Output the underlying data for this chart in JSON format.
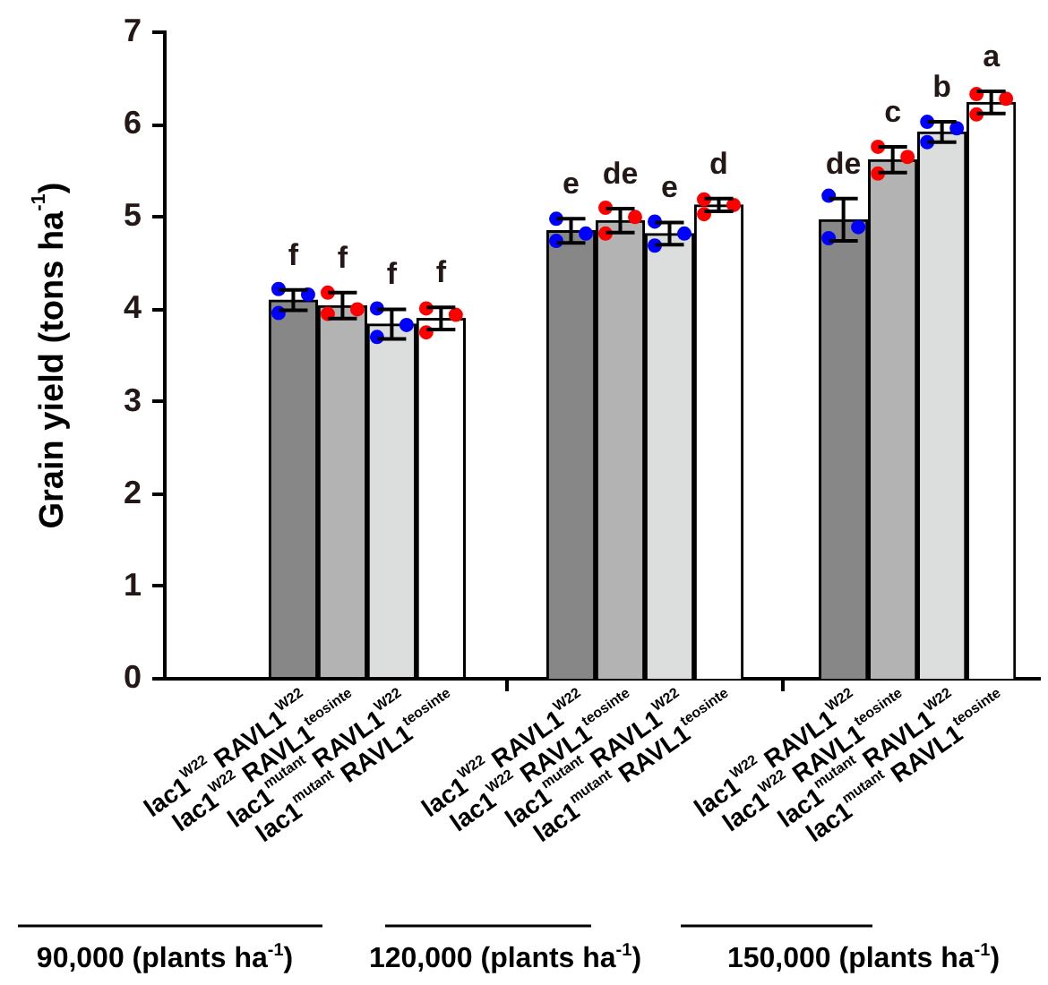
{
  "chart_data": [
    {
      "type": "bar",
      "categories": [
        "lac1$^{W22}$ RAVL1$^{W22}$",
        "lac1$^{W22}$ RAVL1$^{teosinte}$",
        "lac1$^{mutant}$ RAVL1$^{W22}$",
        "lac1$^{mutant}$ RAVL1$^{teosinte}$"
      ],
      "xlabel": "90,000 (plants ha$^{-1}$)",
      "ylabel": "Grain yield (tons ha$^{-1}$)",
      "ylim": [
        0,
        7
      ],
      "yticks": [
        0,
        1,
        2,
        3,
        4,
        5,
        6,
        7
      ],
      "marker": "circle",
      "series": [
        {
          "type": "bar",
          "values": [
            4.1,
            4.04,
            3.84,
            3.9
          ],
          "colors": [
            "#878787",
            "#b3b3b3",
            "#dcdddd",
            "#ffffff"
          ],
          "errors": [
            0.11,
            0.14,
            0.16,
            0.12
          ]
        },
        {
          "type": "scatter",
          "color": "#0000ff",
          "x": [
            "lac1$^{W22}$ RAVL1$^{W22}$",
            "lac1$^{W22}$ RAVL1$^{W22}$",
            "lac1$^{W22}$ RAVL1$^{W22}$",
            "lac1$^{mutant}$ RAVL1$^{W22}$",
            "lac1$^{mutant}$ RAVL1$^{W22}$",
            "lac1$^{mutant}$ RAVL1$^{W22}$"
          ],
          "values": [
            4.22,
            4.16,
            3.96,
            4.01,
            3.83,
            3.7
          ]
        },
        {
          "type": "scatter",
          "color": "#ff0000",
          "x": [
            "lac1$^{W22}$ RAVL1$^{teosinte}$",
            "lac1$^{W22}$ RAVL1$^{teosinte}$",
            "lac1$^{W22}$ RAVL1$^{teosinte}$",
            "lac1$^{mutant}$ RAVL1$^{teosinte}$",
            "lac1$^{mutant}$ RAVL1$^{teosinte}$",
            "lac1$^{mutant}$ RAVL1$^{teosinte}$"
          ],
          "values": [
            4.18,
            4.0,
            3.95,
            4.01,
            3.94,
            3.75
          ]
        }
      ],
      "annotations": [
        "f",
        "f",
        "f",
        "f"
      ]
    },
    {
      "type": "bar",
      "categories": [
        "lac1$^{W22}$ RAVL1$^{W22}$",
        "lac1$^{W22}$ RAVL1$^{teosinte}$",
        "lac1$^{mutant}$ RAVL1$^{W22}$",
        "lac1$^{mutant}$ RAVL1$^{teosinte}$"
      ],
      "xlabel": "120,000 (plants ha$^{-1}$)",
      "ylim": [
        0,
        7
      ],
      "yticks": [
        0,
        1,
        2,
        3,
        4,
        5,
        6,
        7
      ],
      "tick_labels": "x",
      "marker": "circle",
      "series": [
        {
          "type": "bar",
          "values": [
            4.85,
            4.96,
            4.82,
            5.13
          ],
          "colors": [
            "#878787",
            "#b3b3b3",
            "#dcdddd",
            "#ffffff"
          ],
          "errors": [
            0.13,
            0.13,
            0.12,
            0.07
          ]
        },
        {
          "type": "scatter",
          "color": "#0000ff",
          "x": [
            "lac1$^{W22}$ RAVL1$^{W22}$",
            "lac1$^{W22}$ RAVL1$^{W22}$",
            "lac1$^{W22}$ RAVL1$^{W22}$",
            "lac1$^{mutant}$ RAVL1$^{W22}$",
            "lac1$^{mutant}$ RAVL1$^{W22}$",
            "lac1$^{mutant}$ RAVL1$^{W22}$"
          ],
          "values": [
            4.98,
            4.82,
            4.74,
            4.95,
            4.82,
            4.69
          ]
        },
        {
          "type": "scatter",
          "color": "#ff0000",
          "x": [
            "lac1$^{W22}$ RAVL1$^{teosinte}$",
            "lac1$^{W22}$ RAVL1$^{teosinte}$",
            "lac1$^{W22}$ RAVL1$^{teosinte}$",
            "lac1$^{mutant}$ RAVL1$^{teosinte}$",
            "lac1$^{mutant}$ RAVL1$^{teosinte}$",
            "lac1$^{mutant}$ RAVL1$^{teosinte}$"
          ],
          "values": [
            5.1,
            5.0,
            4.82,
            5.19,
            5.13,
            5.03
          ]
        }
      ],
      "annotations": [
        "e",
        "de",
        "e",
        "d"
      ]
    },
    {
      "type": "bar",
      "categories": [
        "lac1$^{W22}$ RAVL1$^{W22}$",
        "lac1$^{W22}$ RAVL1$^{teosinte}$",
        "lac1$^{mutant}$ RAVL1$^{W22}$",
        "lac1$^{mutant}$ RAVL1$^{teosinte}$"
      ],
      "xlabel": "150,000 (plants ha$^{-1}$)",
      "ylim": [
        0,
        7
      ],
      "yticks": [
        0,
        1,
        2,
        3,
        4,
        5,
        6,
        7
      ],
      "tick_labels": "x",
      "marker": "circle",
      "series": [
        {
          "type": "bar",
          "values": [
            4.97,
            5.62,
            5.92,
            6.24
          ],
          "colors": [
            "#878787",
            "#b3b3b3",
            "#dcdddd",
            "#ffffff"
          ],
          "errors": [
            0.23,
            0.14,
            0.11,
            0.12
          ]
        },
        {
          "type": "scatter",
          "color": "#0000ff",
          "x": [
            "lac1$^{W22}$ RAVL1$^{W22}$",
            "lac1$^{W22}$ RAVL1$^{W22}$",
            "lac1$^{W22}$ RAVL1$^{W22}$",
            "lac1$^{mutant}$ RAVL1$^{W22}$",
            "lac1$^{mutant}$ RAVL1$^{W22}$",
            "lac1$^{mutant}$ RAVL1$^{W22}$"
          ],
          "values": [
            5.23,
            4.89,
            4.77,
            6.03,
            5.96,
            5.81
          ]
        },
        {
          "type": "scatter",
          "color": "#ff0000",
          "x": [
            "lac1$^{W22}$ RAVL1$^{teosinte}$",
            "lac1$^{W22}$ RAVL1$^{teosinte}$",
            "lac1$^{W22}$ RAVL1$^{teosinte}$",
            "lac1$^{mutant}$ RAVL1$^{teosinte}$",
            "lac1$^{mutant}$ RAVL1$^{teosinte}$",
            "lac1$^{mutant}$ RAVL1$^{teosinte}$"
          ],
          "values": [
            5.76,
            5.65,
            5.47,
            6.33,
            6.28,
            6.11
          ]
        }
      ],
      "annotations": [
        "de",
        "c",
        "b",
        "a"
      ]
    }
  ]
}
